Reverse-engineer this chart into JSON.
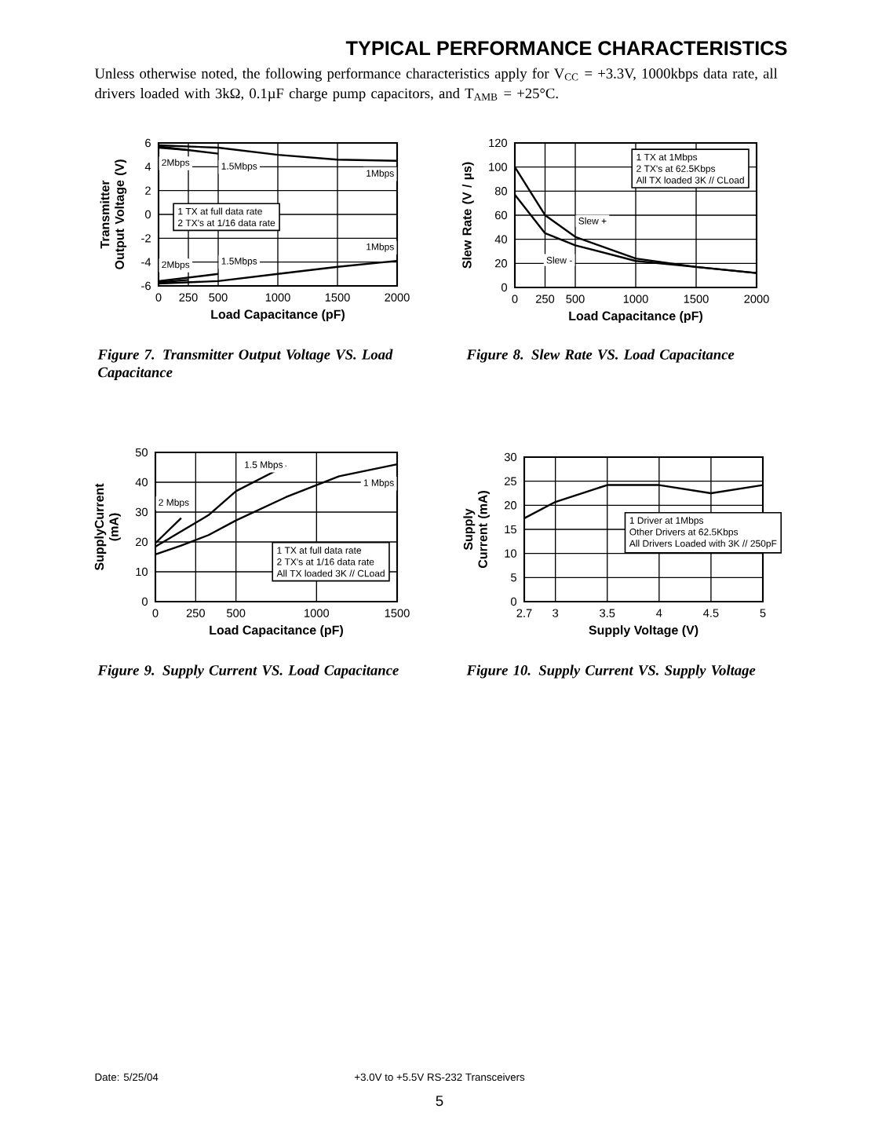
{
  "chart_data": [
    {
      "type": "other",
      "title": "TYPICAL PERFORMANCE CHARACTERISTICS",
      "annotations": [
        "Unless otherwise noted, the following performance characteristics apply for V$_{CC}$ = +3.3V, 1000kbps data rate, all drivers loaded with 3kΩ, 0.1µF charge pump capacitors, and T$_{AMB}$ = +25°C."
      ]
    },
    {
      "type": "line",
      "xlabel": "Load Capacitance (pF)",
      "ylabel": "Transmitter Output Voltage (V)",
      "xlim": [
        0,
        2000
      ],
      "ylim": [
        -6,
        6
      ],
      "xticks": [
        0,
        250,
        500,
        1000,
        1500,
        2000
      ],
      "yticks": [
        -6,
        -4,
        -2,
        0,
        2,
        4,
        6
      ],
      "grid": true,
      "series": [
        {
          "name": "2Mbps",
          "color": "#000000",
          "x": [
            0,
            250
          ],
          "values": [
            5.6,
            5.4
          ]
        },
        {
          "name": "1.5Mbps",
          "color": "#000000",
          "x": [
            0,
            500
          ],
          "values": [
            5.7,
            5.1
          ]
        },
        {
          "name": "1Mbps",
          "color": "#000000",
          "x": [
            0,
            500,
            1000,
            1500,
            2000
          ],
          "values": [
            5.8,
            5.6,
            5.0,
            4.6,
            4.5
          ]
        },
        {
          "name": "2Mbps",
          "color": "#000000",
          "x": [
            0,
            250
          ],
          "values": [
            -5.7,
            -5.5
          ]
        },
        {
          "name": "1.5Mbps",
          "color": "#000000",
          "x": [
            0,
            500
          ],
          "values": [
            -5.6,
            -5.0
          ]
        },
        {
          "name": "1Mbps",
          "color": "#000000",
          "x": [
            0,
            500,
            1000,
            1500,
            2000
          ],
          "values": [
            -5.8,
            -5.6,
            -5.0,
            -4.4,
            -3.9
          ]
        }
      ],
      "annotations": [
        "1 TX at full data rate",
        "2 TX's at 1/16 data rate",
        "Figure 7.  Transmitter Output Voltage VS. Load Capacitance"
      ]
    },
    {
      "type": "line",
      "xlabel": "Load Capacitance (pF)",
      "ylabel": "Slew Rate (V / µs)",
      "xlim": [
        0,
        2000
      ],
      "ylim": [
        0,
        120
      ],
      "xticks": [
        0,
        250,
        500,
        1000,
        1500,
        2000
      ],
      "yticks": [
        0,
        20,
        40,
        60,
        80,
        100,
        120
      ],
      "grid": true,
      "series": [
        {
          "name": "Slew +",
          "color": "#000000",
          "x": [
            0,
            250,
            500,
            1000,
            1500,
            2000
          ],
          "values": [
            100,
            60,
            42,
            24,
            17,
            12
          ]
        },
        {
          "name": "Slew -",
          "color": "#000000",
          "x": [
            0,
            250,
            500,
            1000,
            1500,
            2000
          ],
          "values": [
            77,
            45,
            35,
            22,
            17,
            12
          ]
        }
      ],
      "annotations": [
        "1 TX at 1Mbps",
        "2 TX's at 62.5Kbps",
        "All TX loaded 3K // CLoad",
        "Figure 8.  Slew Rate VS. Load Capacitance"
      ]
    },
    {
      "type": "line",
      "xlabel": "Load Capacitance (pF)",
      "ylabel": "SupplyCurrent (mA)",
      "xlim": [
        0,
        1500
      ],
      "ylim": [
        0,
        50
      ],
      "xticks": [
        0,
        250,
        500,
        1000,
        1500
      ],
      "yticks": [
        0,
        10,
        20,
        30,
        40,
        50
      ],
      "grid": true,
      "series": [
        {
          "name": "2 Mbps",
          "color": "#000000",
          "x": [
            0,
            160
          ],
          "values": [
            19.6,
            28
          ]
        },
        {
          "name": "1.5 Mbps",
          "color": "#000000",
          "x": [
            0,
            330,
            500,
            810
          ],
          "values": [
            18.4,
            29,
            37,
            45.6
          ]
        },
        {
          "name": "1 Mbps",
          "color": "#000000",
          "x": [
            0,
            160,
            330,
            500,
            810,
            1140,
            1500
          ],
          "values": [
            15.8,
            18.8,
            22.3,
            27.2,
            35,
            42,
            46
          ]
        }
      ],
      "annotations": [
        "1 TX at full data rate",
        "2 TX's at 1/16 data rate",
        "All TX loaded 3K // CLoad",
        "Figure 9.  Supply Current VS. Load Capacitance"
      ]
    },
    {
      "type": "line",
      "xlabel": "Supply Voltage (V)",
      "ylabel": "Supply Current (mA)",
      "xlim": [
        2.7,
        5
      ],
      "ylim": [
        0,
        30
      ],
      "xticks": [
        2.7,
        3,
        3.5,
        4,
        4.5,
        5
      ],
      "yticks": [
        0,
        5,
        10,
        15,
        20,
        25,
        30
      ],
      "grid": true,
      "series": [
        {
          "color": "#000000",
          "x": [
            2.7,
            3,
            3.5,
            4,
            4.5,
            5
          ],
          "values": [
            17.3,
            20.7,
            24.2,
            24.2,
            22.5,
            24.2
          ]
        }
      ],
      "annotations": [
        "1 Driver at 1Mbps",
        "Other Drivers at 62.5Kbps",
        "All Drivers Loaded with 3K // 250pF",
        "Figure 10.  Supply Current VS. Supply Voltage"
      ]
    },
    {
      "type": "other",
      "annotations": [
        "Date: 5/25/04",
        "+3.0V to +5.5V RS-232 Transceivers",
        "5"
      ]
    }
  ]
}
